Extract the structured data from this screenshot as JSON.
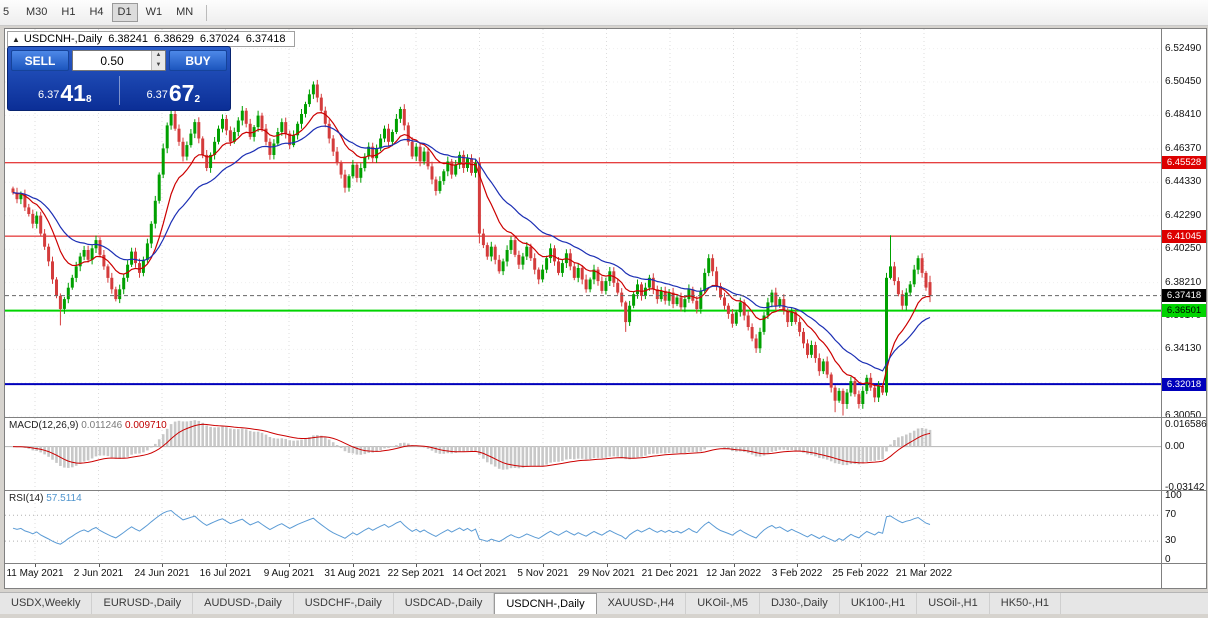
{
  "toolbar": {
    "timeframes": [
      "5",
      "M30",
      "H1",
      "H4",
      "D1",
      "W1",
      "MN"
    ],
    "active": "D1"
  },
  "quote_header": {
    "symbol": "USDCNH-,Daily",
    "open": "6.38241",
    "high": "6.38629",
    "low": "6.37024",
    "close": "6.37418"
  },
  "trade_panel": {
    "sell_label": "SELL",
    "buy_label": "BUY",
    "lot": "0.50",
    "bid_small": "6.37",
    "bid_big": "41",
    "bid_sup": "8",
    "ask_small": "6.37",
    "ask_big": "67",
    "ask_sup": "2"
  },
  "levels": [
    {
      "label": "6.45528",
      "price": 6.45528,
      "color": "#dd0000",
      "text_color": "#ffffff",
      "thickness": 1,
      "style": "solid"
    },
    {
      "label": "6.41045",
      "price": 6.41045,
      "color": "#dd0000",
      "text_color": "#ffffff",
      "thickness": 1,
      "style": "solid"
    },
    {
      "label": "6.37418",
      "price": 6.37418,
      "color": "#000000",
      "text_color": "#ffffff",
      "thickness": 1,
      "style": "dashed"
    },
    {
      "label": "6.36501",
      "price": 6.36501,
      "color": "#00d400",
      "text_color": "#000000",
      "thickness": 2,
      "style": "solid"
    },
    {
      "label": "6.32018",
      "price": 6.32018,
      "color": "#0000bb",
      "text_color": "#ffffff",
      "thickness": 2,
      "style": "solid"
    }
  ],
  "chart_data": {
    "type": "candlestick",
    "symbol": "USDCNH",
    "timeframe": "Daily",
    "ylim": [
      6.30008,
      6.53684
    ],
    "up_color": "#00a000",
    "down_color": "#d43c3c",
    "ma": [
      {
        "period": 12,
        "color": "#cc0000"
      },
      {
        "period": 26,
        "color": "#1c2fb4"
      }
    ],
    "price_axis_ticks": [
      "6.52490",
      "6.50450",
      "6.48410",
      "6.46370",
      "6.44330",
      "6.42290",
      "6.40250",
      "6.38210",
      "6.36170",
      "6.34130",
      "6.32090",
      "6.30050"
    ],
    "x_labels": [
      "11 May 2021",
      "2 Jun 2021",
      "24 Jun 2021",
      "16 Jul 2021",
      "9 Aug 2021",
      "31 Aug 2021",
      "22 Sep 2021",
      "14 Oct 2021",
      "5 Nov 2021",
      "29 Nov 2021",
      "21 Dec 2021",
      "12 Jan 2022",
      "3 Feb 2022",
      "25 Feb 2022",
      "21 Mar 2022"
    ],
    "closes": [
      6.437,
      6.433,
      6.436,
      6.428,
      6.424,
      6.418,
      6.423,
      6.412,
      6.404,
      6.395,
      6.384,
      6.374,
      6.366,
      6.372,
      6.379,
      6.385,
      6.392,
      6.398,
      6.402,
      6.396,
      6.403,
      6.408,
      6.399,
      6.392,
      6.385,
      6.378,
      6.372,
      6.378,
      6.385,
      6.393,
      6.401,
      6.394,
      6.388,
      6.396,
      6.406,
      6.418,
      6.432,
      6.448,
      6.464,
      6.478,
      6.485,
      6.476,
      6.468,
      6.459,
      6.466,
      6.473,
      6.48,
      6.47,
      6.46,
      6.452,
      6.46,
      6.468,
      6.476,
      6.482,
      6.475,
      6.468,
      6.474,
      6.481,
      6.487,
      6.479,
      6.471,
      6.477,
      6.484,
      6.476,
      6.468,
      6.46,
      6.467,
      6.474,
      6.48,
      6.473,
      6.466,
      6.472,
      6.479,
      6.485,
      6.491,
      6.497,
      6.503,
      6.495,
      6.487,
      6.479,
      6.47,
      6.462,
      6.455,
      6.448,
      6.44,
      6.447,
      6.454,
      6.446,
      6.452,
      6.459,
      6.465,
      6.458,
      6.464,
      6.47,
      6.476,
      6.468,
      6.474,
      6.482,
      6.488,
      6.478,
      6.468,
      6.459,
      6.465,
      6.456,
      6.462,
      6.453,
      6.445,
      6.438,
      6.444,
      6.45,
      6.456,
      6.448,
      6.454,
      6.46,
      6.452,
      6.458,
      6.449,
      6.455,
      6.412,
      6.405,
      6.398,
      6.404,
      6.396,
      6.389,
      6.395,
      6.402,
      6.408,
      6.399,
      6.393,
      6.398,
      6.404,
      6.397,
      6.39,
      6.384,
      6.39,
      6.397,
      6.403,
      6.395,
      6.388,
      6.394,
      6.4,
      6.392,
      6.385,
      6.391,
      6.384,
      6.378,
      6.384,
      6.39,
      6.383,
      6.377,
      6.383,
      6.389,
      6.382,
      6.376,
      6.37,
      6.358,
      6.368,
      6.375,
      6.381,
      6.374,
      6.379,
      6.385,
      6.378,
      6.372,
      6.377,
      6.371,
      6.376,
      6.369,
      6.373,
      6.367,
      6.372,
      6.378,
      6.371,
      6.366,
      6.377,
      6.388,
      6.397,
      6.389,
      6.38,
      6.373,
      6.368,
      6.363,
      6.357,
      6.364,
      6.37,
      6.362,
      6.355,
      6.348,
      6.342,
      6.352,
      6.362,
      6.37,
      6.376,
      6.368,
      6.372,
      6.365,
      6.358,
      6.364,
      6.358,
      6.352,
      6.345,
      6.338,
      6.344,
      6.336,
      6.328,
      6.334,
      6.326,
      6.318,
      6.31,
      6.316,
      6.308,
      6.315,
      6.322,
      6.314,
      6.308,
      6.316,
      6.324,
      6.318,
      6.312,
      6.319,
      6.315,
      6.385,
      6.392,
      6.383,
      6.375,
      6.368,
      6.376,
      6.381,
      6.39,
      6.397,
      6.388,
      6.379,
      6.3742
    ],
    "overrides": {
      "12": [
        6.374,
        6.3755,
        6.356,
        6.366
      ],
      "118": [
        6.455,
        6.4585,
        6.406,
        6.412
      ],
      "155": [
        6.37,
        6.371,
        6.352,
        6.358
      ],
      "208": [
        6.318,
        6.3195,
        6.303,
        6.31
      ],
      "210": [
        6.316,
        6.3175,
        6.301,
        6.308
      ],
      "221": [
        6.315,
        6.388,
        6.313,
        6.385
      ],
      "222": [
        6.385,
        6.411,
        6.384,
        6.392
      ],
      "232": [
        6.3824,
        6.3863,
        6.3702,
        6.3742
      ]
    },
    "indicators": {
      "macd": {
        "label": "MACD(12,26,9)",
        "value_main": "0.011246",
        "value_signal": "0.009710",
        "params": [
          12,
          26,
          9
        ],
        "axis": [
          "0.016586",
          "0.00",
          "-0.03142"
        ],
        "ylim": [
          -0.03318,
          0.02187
        ],
        "hist_color": "#c8c8c8",
        "signal_color": "#cc0000"
      },
      "rsi": {
        "label": "RSI(14)",
        "value": "57.5114",
        "period": 14,
        "axis": [
          "100",
          "70",
          "30",
          "0"
        ],
        "levels": [
          70,
          30
        ],
        "ylim": [
          -3.9,
          107.7
        ],
        "line_color": "#5b9bd5"
      }
    }
  },
  "tabs": {
    "items": [
      "USDX,Weekly",
      "EURUSD-,Daily",
      "AUDUSD-,Daily",
      "USDCHF-,Daily",
      "USDCAD-,Daily",
      "USDCNH-,Daily",
      "XAUUSD-,H4",
      "UKOil-,M5",
      "DJ30-,Daily",
      "UK100-,H1",
      "USOil-,H1",
      "HK50-,H1"
    ],
    "active": "USDCNH-,Daily"
  }
}
